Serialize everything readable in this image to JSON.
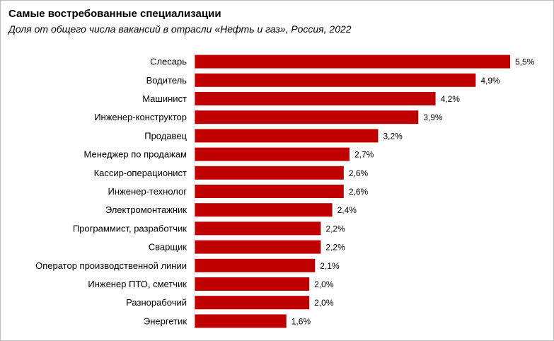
{
  "title": "Самые востребованные специализации",
  "subtitle": "Доля от общего числа вакансий в отрасли «Нефть и газ», Россия, 2022",
  "chart_data": {
    "type": "bar",
    "orientation": "horizontal",
    "title": "Самые востребованные специализации",
    "subtitle": "Доля от общего числа вакансий в отрасли «Нефть и газ», Россия, 2022",
    "categories": [
      "Слесарь",
      "Водитель",
      "Машинист",
      "Инженер-конструктор",
      "Продавец",
      "Менеджер по продажам",
      "Кассир-операционист",
      "Инженер-технолог",
      "Электромонтажник",
      "Программист, разработчик",
      "Сварщик",
      "Оператор производственной линии",
      "Инженер ПТО, сметчик",
      "Разнорабочий",
      "Энергетик"
    ],
    "values": [
      5.5,
      4.9,
      4.2,
      3.9,
      3.2,
      2.7,
      2.6,
      2.6,
      2.4,
      2.2,
      2.2,
      2.1,
      2.0,
      2.0,
      1.6
    ],
    "value_labels": [
      "5,5%",
      "4,9%",
      "4,2%",
      "3,9%",
      "3,2%",
      "2,7%",
      "2,6%",
      "2,6%",
      "2,4%",
      "2,2%",
      "2,2%",
      "2,1%",
      "2,0%",
      "2,0%",
      "1,6%"
    ],
    "unit": "%",
    "xlim": [
      0,
      5.5
    ],
    "grid": false,
    "legend": "none",
    "bar_color": "#c00000"
  }
}
